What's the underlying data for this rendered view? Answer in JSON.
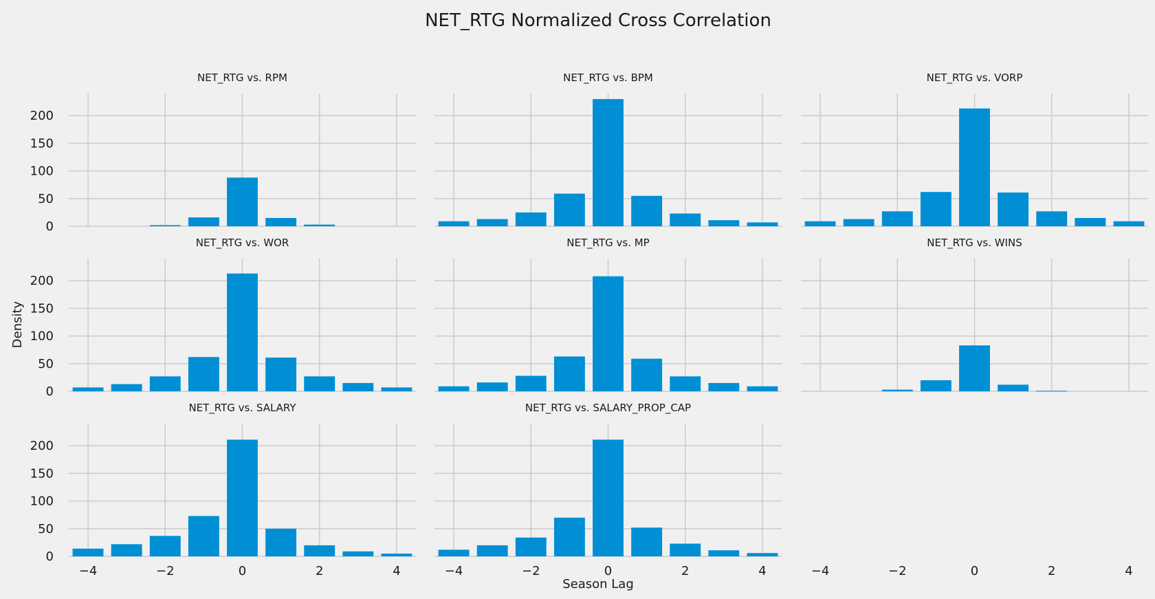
{
  "figure_title": "NET_RTG Normalized Cross Correlation",
  "y_axis_label": "Density",
  "x_axis_label": "Season Lag",
  "colors": {
    "background": "#f0f0f0",
    "bar": "#008fd5",
    "grid": "#cbcbcb"
  },
  "chart_data": {
    "type": "bar",
    "xlim": [
      -4.5,
      4.5
    ],
    "ylim": [
      0,
      240
    ],
    "x_ticks": [
      -4,
      -2,
      0,
      2,
      4
    ],
    "x_tick_labels": [
      "−4",
      "−2",
      "0",
      "2",
      "4"
    ],
    "y_ticks": [
      0,
      50,
      100,
      150,
      200
    ],
    "y_tick_labels": [
      "0",
      "50",
      "100",
      "150",
      "200"
    ],
    "grid": true,
    "lags": [
      -4,
      -3,
      -2,
      -1,
      0,
      1,
      2,
      3,
      4
    ],
    "panels": [
      {
        "title": "NET_RTG vs. RPM",
        "values": [
          0,
          0,
          2,
          16,
          88,
          15,
          3,
          0,
          0
        ]
      },
      {
        "title": "NET_RTG vs. BPM",
        "values": [
          9,
          13,
          25,
          59,
          230,
          55,
          23,
          11,
          7
        ]
      },
      {
        "title": "NET_RTG vs. VORP",
        "values": [
          9,
          13,
          27,
          62,
          213,
          61,
          27,
          15,
          9
        ]
      },
      {
        "title": "NET_RTG vs. WOR",
        "values": [
          7,
          13,
          27,
          62,
          213,
          61,
          27,
          15,
          7
        ]
      },
      {
        "title": "NET_RTG vs. MP",
        "values": [
          9,
          16,
          28,
          63,
          208,
          59,
          27,
          15,
          9
        ]
      },
      {
        "title": "NET_RTG vs. WINS",
        "values": [
          0,
          0,
          3,
          20,
          83,
          12,
          1,
          0,
          0
        ]
      },
      {
        "title": "NET_RTG vs. SALARY",
        "values": [
          14,
          22,
          37,
          73,
          211,
          50,
          20,
          9,
          5
        ]
      },
      {
        "title": "NET_RTG vs. SALARY_PROP_CAP",
        "values": [
          12,
          20,
          34,
          70,
          211,
          52,
          23,
          11,
          6
        ]
      }
    ]
  }
}
